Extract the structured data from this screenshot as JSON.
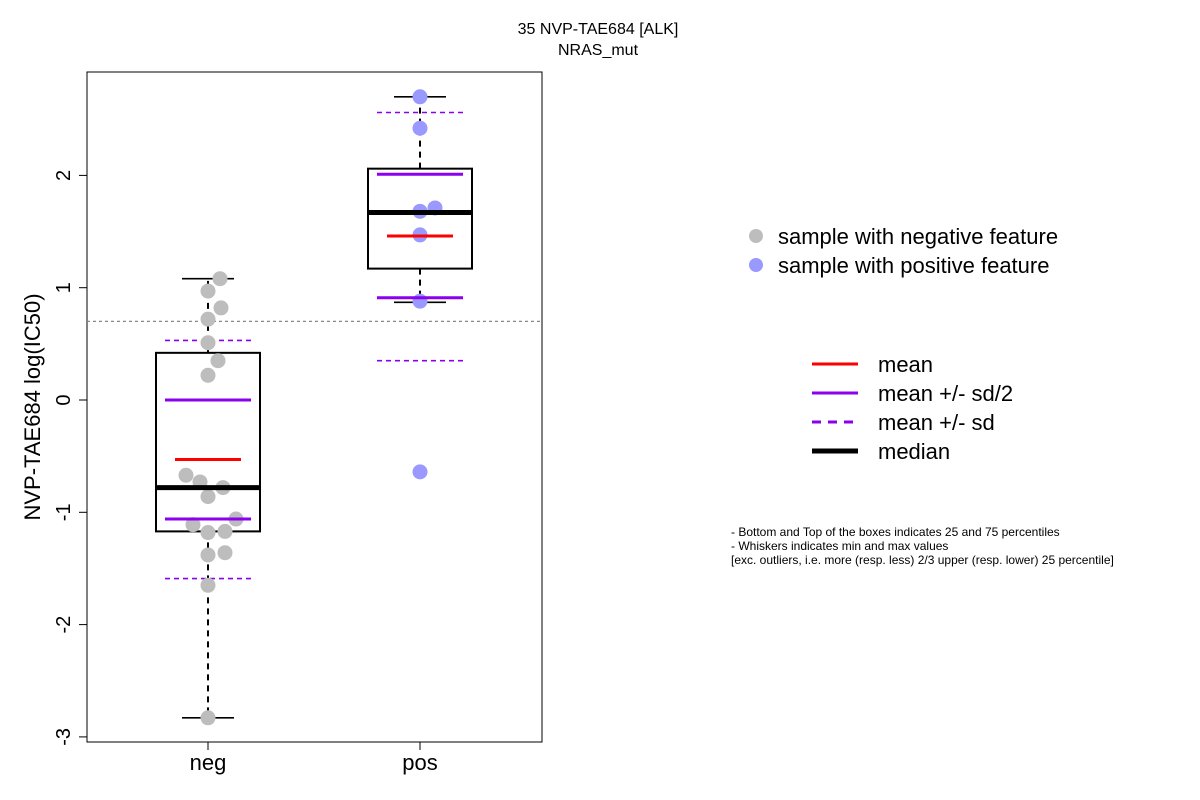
{
  "chart_data": {
    "type": "box",
    "title": "35 NVP-TAE684 [ALK]",
    "subtitle": "NRAS_mut",
    "xlabel": "",
    "ylabel": "NVP-TAE684 log(IC50)",
    "ylim": [
      -3,
      2.8
    ],
    "yticks": [
      -3,
      -2,
      -1,
      0,
      1,
      2
    ],
    "grid": false,
    "threshold_line": 0.7,
    "categories": [
      "neg",
      "pos"
    ],
    "groups": [
      {
        "name": "neg",
        "color": "#bdbdbd",
        "box": {
          "q1": -1.17,
          "median": -0.78,
          "q3": 0.42,
          "whisker_low": -2.83,
          "whisker_high": 1.08
        },
        "mean": -0.53,
        "mean_minus_half_sd": -1.06,
        "mean_plus_half_sd": 0.0,
        "mean_minus_sd": -1.59,
        "mean_plus_sd": 0.53,
        "points": [
          {
            "x": 0.0,
            "y": -2.83
          },
          {
            "x": 0.0,
            "y": -1.65
          },
          {
            "x": 0.0,
            "y": -1.38
          },
          {
            "x": 0.17,
            "y": -1.36
          },
          {
            "x": 0.0,
            "y": -1.18
          },
          {
            "x": 0.17,
            "y": -1.17
          },
          {
            "x": -0.15,
            "y": -1.11
          },
          {
            "x": 0.28,
            "y": -1.06
          },
          {
            "x": 0.0,
            "y": -0.86
          },
          {
            "x": 0.15,
            "y": -0.78
          },
          {
            "x": -0.08,
            "y": -0.73
          },
          {
            "x": -0.22,
            "y": -0.67
          },
          {
            "x": 0.0,
            "y": 0.22
          },
          {
            "x": 0.1,
            "y": 0.35
          },
          {
            "x": 0.0,
            "y": 0.51
          },
          {
            "x": 0.0,
            "y": 0.72
          },
          {
            "x": 0.13,
            "y": 0.82
          },
          {
            "x": 0.0,
            "y": 0.97
          },
          {
            "x": 0.12,
            "y": 1.08
          }
        ]
      },
      {
        "name": "pos",
        "color": "#9999ff",
        "box": {
          "q1": 1.17,
          "median": 1.67,
          "q3": 2.06,
          "whisker_low": 0.87,
          "whisker_high": 2.7
        },
        "mean": 1.46,
        "mean_minus_half_sd": 0.91,
        "mean_plus_half_sd": 2.01,
        "mean_minus_sd": 0.35,
        "mean_plus_sd": 2.56,
        "points": [
          {
            "x": 0.0,
            "y": -0.64
          },
          {
            "x": 0.0,
            "y": 0.88
          },
          {
            "x": 0.0,
            "y": 1.47
          },
          {
            "x": 0.0,
            "y": 1.68
          },
          {
            "x": 0.15,
            "y": 1.71
          },
          {
            "x": 0.0,
            "y": 2.42
          },
          {
            "x": 0.0,
            "y": 2.7
          }
        ]
      }
    ],
    "legend_points": [
      {
        "label": "sample with negative feature",
        "color": "#bdbdbd"
      },
      {
        "label": "sample with positive feature",
        "color": "#9999ff"
      }
    ],
    "legend_lines": [
      {
        "label": "mean",
        "color": "#ff0000",
        "style": "solid"
      },
      {
        "label": "mean +/- sd/2",
        "color": "#8b00ee",
        "style": "solid"
      },
      {
        "label": "mean +/- sd",
        "color": "#8b00ee",
        "style": "dashed"
      },
      {
        "label": "median",
        "color": "#000000",
        "style": "thick"
      }
    ],
    "notes": [
      "- Bottom and Top of the boxes indicates 25 and 75 percentiles",
      "- Whiskers indicates min and max values",
      "[exc. outliers, i.e. more (resp. less) 2/3 upper (resp. lower) 25 percentile]"
    ]
  }
}
